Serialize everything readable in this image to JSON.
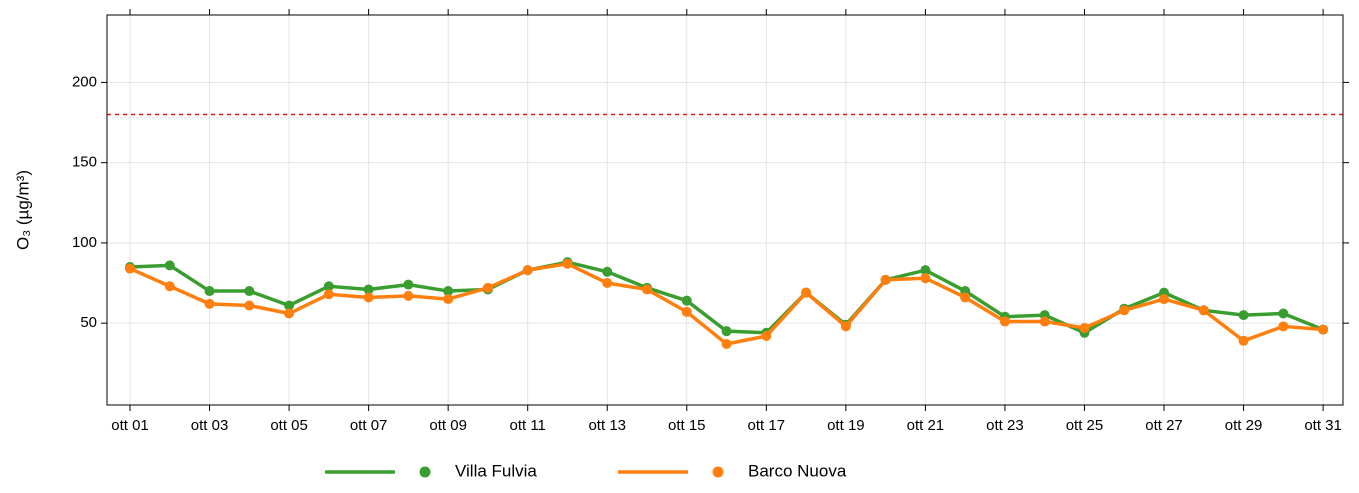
{
  "chart_data": {
    "type": "line",
    "y_label": "O₃ (µg/m³)",
    "categories": [
      "ott 01",
      null,
      "ott 03",
      null,
      "ott 05",
      null,
      "ott 07",
      null,
      "ott 09",
      null,
      "ott 11",
      null,
      "ott 13",
      null,
      "ott 15",
      null,
      "ott 17",
      null,
      "ott 19",
      null,
      "ott 21",
      null,
      "ott 23",
      null,
      "ott 25",
      null,
      "ott 27",
      null,
      "ott 29",
      null,
      "ott 31"
    ],
    "series": [
      {
        "name": "Villa Fulvia",
        "color": "#3a9d2f",
        "values": [
          85,
          86,
          70,
          70,
          61,
          73,
          71,
          74,
          70,
          71,
          83,
          88,
          82,
          72,
          64,
          45,
          44,
          69,
          49,
          77,
          83,
          70,
          54,
          55,
          44,
          59,
          69,
          58,
          55,
          56,
          46
        ]
      },
      {
        "name": "Barco Nuova",
        "color": "#ff7f0e",
        "values": [
          84,
          73,
          62,
          61,
          56,
          68,
          66,
          67,
          65,
          72,
          83,
          87,
          75,
          71,
          57,
          37,
          42,
          69,
          48,
          77,
          78,
          66,
          51,
          51,
          47,
          58,
          65,
          58,
          39,
          48,
          46
        ]
      }
    ],
    "ylim": [
      -1,
      242
    ],
    "yticks": [
      50,
      100,
      150,
      200
    ],
    "hline": 180,
    "hline_color": "#e41a1c",
    "grid": true,
    "legend": "bottom"
  }
}
